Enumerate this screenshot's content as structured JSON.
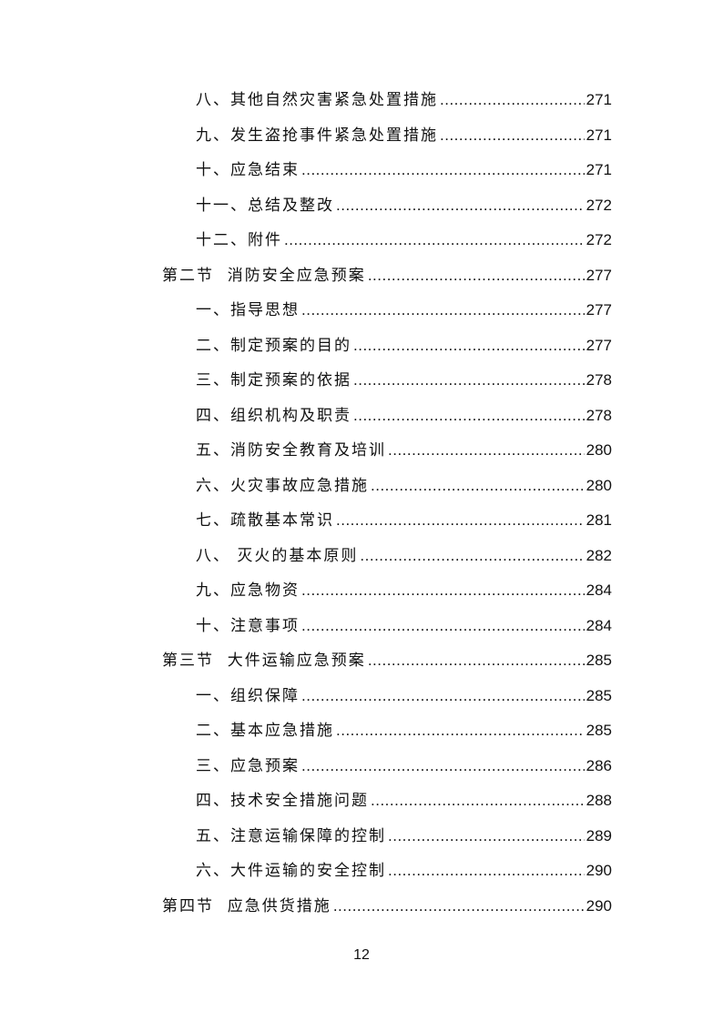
{
  "toc": [
    {
      "level": 2,
      "label": "八、其他自然灾害紧急处置措施",
      "page": "271"
    },
    {
      "level": 2,
      "label": "九、发生盗抢事件紧急处置措施",
      "page": "271"
    },
    {
      "level": 2,
      "label": "十、应急结束",
      "page": "271"
    },
    {
      "level": 2,
      "label": "十一、总结及整改",
      "page": "272"
    },
    {
      "level": 2,
      "label": "十二、附件",
      "page": "272"
    },
    {
      "level": 1,
      "label": "第二节  消防安全应急预案",
      "page": "277"
    },
    {
      "level": 2,
      "label": "一、指导思想",
      "page": "277"
    },
    {
      "level": 2,
      "label": "二、制定预案的目的",
      "page": "277"
    },
    {
      "level": 2,
      "label": "三、制定预案的依据",
      "page": "278"
    },
    {
      "level": 2,
      "label": "四、组织机构及职责",
      "page": "278"
    },
    {
      "level": 2,
      "label": "五、消防安全教育及培训",
      "page": "280"
    },
    {
      "level": 2,
      "label": "六、火灾事故应急措施",
      "page": "280"
    },
    {
      "level": 2,
      "label": "七、疏散基本常识",
      "page": "281"
    },
    {
      "level": 2,
      "label": "八、 灭火的基本原则",
      "page": "282"
    },
    {
      "level": 2,
      "label": "九、应急物资",
      "page": "284"
    },
    {
      "level": 2,
      "label": "十、注意事项",
      "page": "284"
    },
    {
      "level": 1,
      "label": "第三节  大件运输应急预案",
      "page": "285"
    },
    {
      "level": 2,
      "label": "一、组织保障",
      "page": "285"
    },
    {
      "level": 2,
      "label": "二、基本应急措施",
      "page": "285"
    },
    {
      "level": 2,
      "label": "三、应急预案",
      "page": "286"
    },
    {
      "level": 2,
      "label": "四、技术安全措施问题",
      "page": "288"
    },
    {
      "level": 2,
      "label": "五、注意运输保障的控制",
      "page": "289"
    },
    {
      "level": 2,
      "label": "六、大件运输的安全控制",
      "page": "290"
    },
    {
      "level": 1,
      "label": "第四节  应急供货措施",
      "page": "290"
    }
  ],
  "footer": {
    "page_number": "12"
  }
}
